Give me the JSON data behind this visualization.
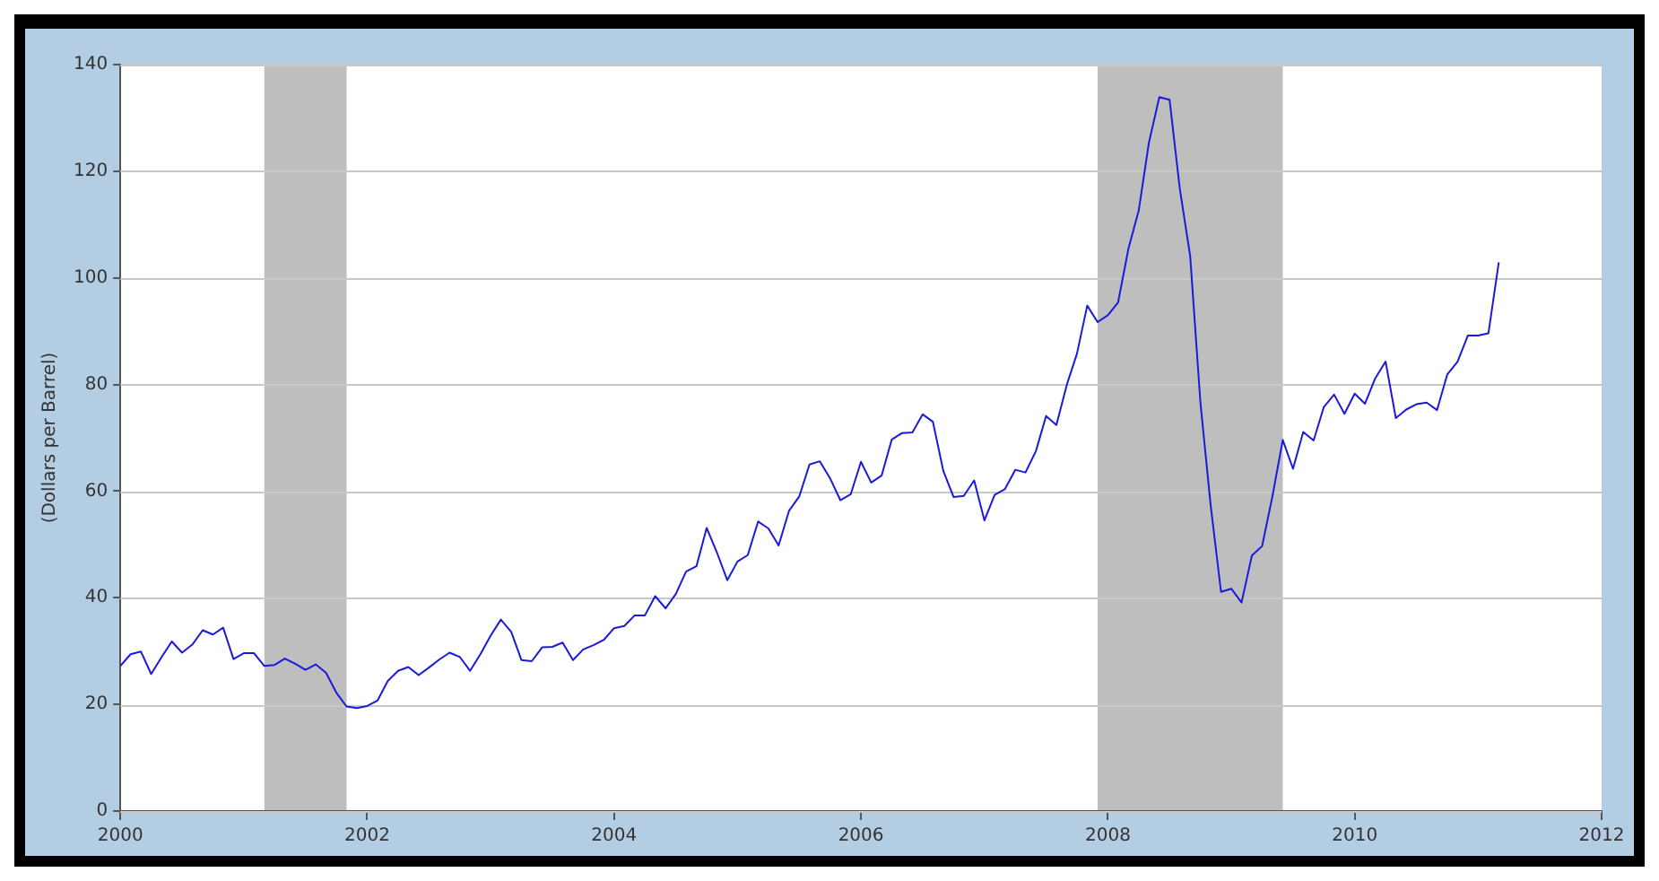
{
  "chart_data": {
    "type": "line",
    "ylabel": "(Dollars per Barrel)",
    "xlim": [
      2000,
      2012
    ],
    "xticks": [
      2000,
      2002,
      2004,
      2006,
      2008,
      2010,
      2012
    ],
    "ylim": [
      0,
      140
    ],
    "yticks": [
      0,
      20,
      40,
      60,
      80,
      100,
      120,
      140
    ],
    "grid": "y",
    "legend": false,
    "marker": "none",
    "line_style": "solid",
    "bands": [
      {
        "axis": "x",
        "from": 2001.167,
        "to": 2001.833,
        "color": "#bebebe"
      },
      {
        "axis": "x",
        "from": 2007.917,
        "to": 2009.417,
        "color": "#bebebe"
      }
    ],
    "series": [
      {
        "color": "#1a1adc",
        "x": [
          2000,
          2000.083,
          2000.167,
          2000.25,
          2000.333,
          2000.417,
          2000.5,
          2000.583,
          2000.667,
          2000.75,
          2000.833,
          2000.917,
          2001,
          2001.083,
          2001.167,
          2001.25,
          2001.333,
          2001.417,
          2001.5,
          2001.583,
          2001.667,
          2001.75,
          2001.833,
          2001.917,
          2002,
          2002.083,
          2002.167,
          2002.25,
          2002.333,
          2002.417,
          2002.5,
          2002.583,
          2002.667,
          2002.75,
          2002.833,
          2002.917,
          2003,
          2003.083,
          2003.167,
          2003.25,
          2003.333,
          2003.417,
          2003.5,
          2003.583,
          2003.667,
          2003.75,
          2003.833,
          2003.917,
          2004,
          2004.083,
          2004.167,
          2004.25,
          2004.333,
          2004.417,
          2004.5,
          2004.583,
          2004.667,
          2004.75,
          2004.833,
          2004.917,
          2005,
          2005.083,
          2005.167,
          2005.25,
          2005.333,
          2005.417,
          2005.5,
          2005.583,
          2005.667,
          2005.75,
          2005.833,
          2005.917,
          2006,
          2006.083,
          2006.167,
          2006.25,
          2006.333,
          2006.417,
          2006.5,
          2006.583,
          2006.667,
          2006.75,
          2006.833,
          2006.917,
          2007,
          2007.083,
          2007.167,
          2007.25,
          2007.333,
          2007.417,
          2007.5,
          2007.583,
          2007.667,
          2007.75,
          2007.833,
          2007.917,
          2008,
          2008.083,
          2008.167,
          2008.25,
          2008.333,
          2008.417,
          2008.5,
          2008.583,
          2008.667,
          2008.75,
          2008.833,
          2008.917,
          2009,
          2009.083,
          2009.167,
          2009.25,
          2009.333,
          2009.417,
          2009.5,
          2009.583,
          2009.667,
          2009.75,
          2009.833,
          2009.917,
          2010,
          2010.083,
          2010.167,
          2010.25,
          2010.333,
          2010.417,
          2010.5,
          2010.583,
          2010.667,
          2010.75,
          2010.833,
          2010.917,
          2011,
          2011.083,
          2011.167
        ],
        "values": [
          27.2,
          29.4,
          29.9,
          25.7,
          28.8,
          31.8,
          29.7,
          31.2,
          33.9,
          33.1,
          34.4,
          28.5,
          29.6,
          29.6,
          27.2,
          27.4,
          28.6,
          27.6,
          26.5,
          27.5,
          25.9,
          22.2,
          19.6,
          19.3,
          19.7,
          20.7,
          24.4,
          26.3,
          27,
          25.5,
          26.9,
          28.4,
          29.7,
          28.9,
          26.3,
          29.4,
          32.9,
          35.9,
          33.6,
          28.3,
          28.1,
          30.7,
          30.8,
          31.6,
          28.3,
          30.3,
          31.1,
          32.1,
          34.3,
          34.7,
          36.7,
          36.7,
          40.3,
          38,
          40.7,
          44.9,
          45.9,
          53.1,
          48.5,
          43.3,
          46.8,
          48,
          54.3,
          53,
          49.8,
          56.3,
          59,
          65,
          65.6,
          62.4,
          58.3,
          59.4,
          65.5,
          61.6,
          62.9,
          69.7,
          70.9,
          71,
          74.4,
          73,
          63.8,
          58.9,
          59.1,
          62,
          54.5,
          59.3,
          60.4,
          64,
          63.5,
          67.5,
          74.1,
          72.4,
          79.9,
          85.8,
          94.8,
          91.7,
          93,
          95.4,
          105.5,
          112.6,
          125.4,
          133.9,
          133.4,
          116.7,
          104.1,
          76.6,
          57.3,
          41.1,
          41.7,
          39.1,
          47.9,
          49.7,
          59,
          69.6,
          64.2,
          71.1,
          69.5,
          75.8,
          78.1,
          74.5,
          78.3,
          76.4,
          81.2,
          84.3,
          73.7,
          75.3,
          76.3,
          76.6,
          75.2,
          81.9,
          84.3,
          89.2,
          89.2,
          89.6,
          102.9
        ]
      }
    ]
  }
}
